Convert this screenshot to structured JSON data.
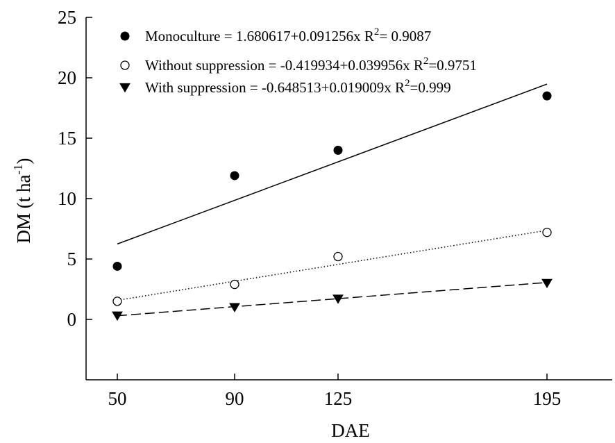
{
  "chart_data": {
    "type": "scatter",
    "xlabel": "DAE",
    "ylabel": {
      "text": "DM (t ha",
      "sup": "-1",
      "close": ")"
    },
    "x_ticks": [
      "50",
      "90",
      "125",
      "195"
    ],
    "y_ticks": [
      "0",
      "5",
      "10",
      "15",
      "20",
      "25"
    ],
    "ylim": [
      -5,
      25
    ],
    "xlim": [
      45,
      225
    ],
    "grid": false,
    "legend_position": "top-left",
    "series": [
      {
        "name": "Monoculture",
        "legend": {
          "pre": "Monoculture = 1.680617+0.091256x  R",
          "sup": "2",
          "post": "= 0.9087"
        },
        "marker": "filled-circle",
        "line_style": "solid",
        "x": [
          50,
          90,
          125,
          195
        ],
        "y": [
          4.4,
          11.9,
          14.0,
          18.5
        ],
        "fit": {
          "intercept": 1.680617,
          "slope": 0.091256
        }
      },
      {
        "name": "Without suppression",
        "legend": {
          "pre": "Without suppression = -0.419934+0.039956x R",
          "sup": "2",
          "post": "=0.9751"
        },
        "marker": "open-circle",
        "line_style": "dotted",
        "x": [
          50,
          90,
          125,
          195
        ],
        "y": [
          1.5,
          2.9,
          5.2,
          7.2
        ],
        "fit": {
          "intercept": -0.419934,
          "slope": 0.039956
        }
      },
      {
        "name": "With suppression",
        "legend": {
          "pre": "With suppression = -0.648513+0.019009x R",
          "sup": "2",
          "post": "=0.999"
        },
        "marker": "filled-triangle-down",
        "line_style": "dashed",
        "x": [
          50,
          90,
          125,
          195
        ],
        "y": [
          0.3,
          1.0,
          1.7,
          3.0
        ],
        "fit": {
          "intercept": -0.648513,
          "slope": 0.019009
        }
      }
    ]
  }
}
